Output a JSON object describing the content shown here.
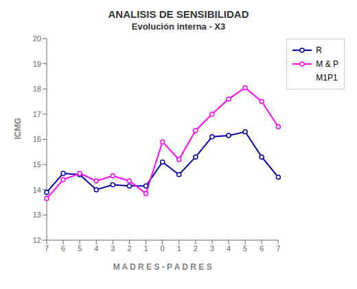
{
  "chart_data": {
    "type": "line",
    "title": "ANALISIS DE SENSIBILIDAD",
    "subtitle": "Evolución interna - X3",
    "xlabel": "M A D R E S - P A D R E S",
    "ylabel": "ICMG",
    "categories": [
      "7",
      "6",
      "5",
      "4",
      "3",
      "2",
      "1",
      "0",
      "1",
      "2",
      "3",
      "4",
      "5",
      "6",
      "7"
    ],
    "series": [
      {
        "name": "R",
        "color": "#0000AA",
        "marker": "circle",
        "values": [
          13.9,
          14.65,
          14.6,
          14.0,
          14.2,
          14.15,
          14.15,
          15.1,
          14.6,
          15.3,
          16.1,
          16.15,
          16.3,
          15.3,
          14.5
        ]
      },
      {
        "name": "M & P",
        "color": "#FF00FF",
        "marker": "circle",
        "values": [
          13.65,
          14.4,
          14.65,
          14.35,
          14.55,
          14.35,
          13.85,
          15.9,
          15.2,
          16.35,
          17.0,
          17.6,
          18.05,
          17.5,
          16.5
        ]
      },
      {
        "name": "M1P1",
        "values": [
          null,
          null,
          null,
          null,
          null,
          null,
          null,
          null,
          null,
          null,
          null,
          null,
          null,
          null,
          null
        ]
      }
    ],
    "ylim": [
      12,
      20
    ],
    "yticks": [
      12,
      13,
      14,
      15,
      16,
      17,
      18,
      19,
      20
    ],
    "grid": false,
    "legend": "right"
  }
}
